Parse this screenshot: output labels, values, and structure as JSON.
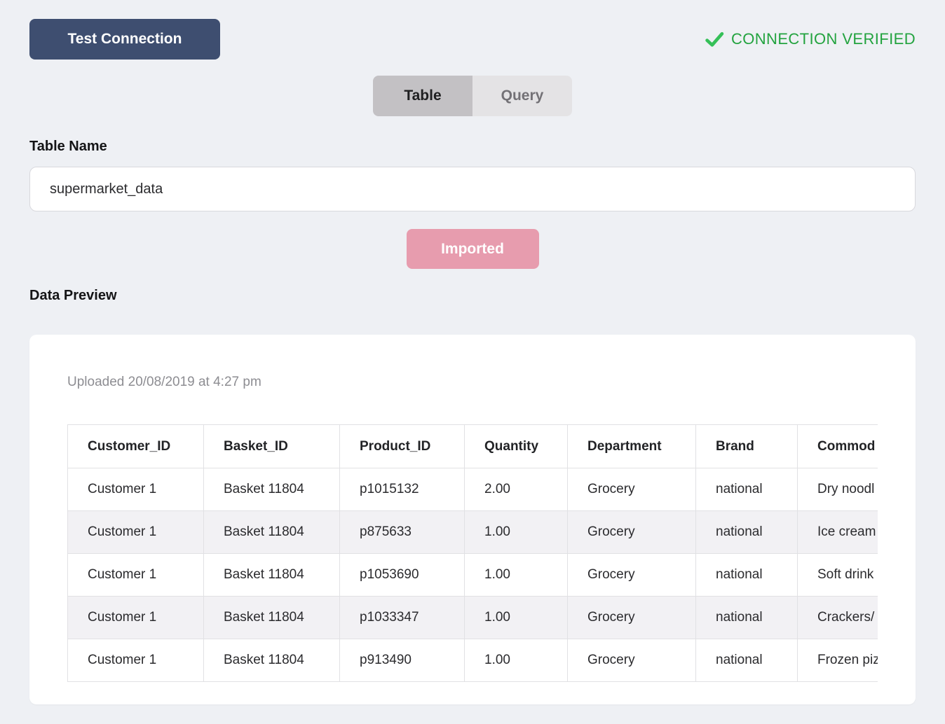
{
  "header": {
    "test_connection_label": "Test Connection",
    "status": {
      "label": "CONNECTION VERIFIED",
      "icon": "check-icon",
      "text_color": "#23a33f",
      "icon_color": "#35c058"
    }
  },
  "tabs": [
    {
      "label": "Table",
      "active": true
    },
    {
      "label": "Query",
      "active": false
    }
  ],
  "form": {
    "table_name_label": "Table Name",
    "table_name_value": "supermarket_data",
    "imported_button_label": "Imported",
    "imported_button_color": "#e79cae",
    "test_button_color": "#3e4e70"
  },
  "preview": {
    "heading": "Data Preview",
    "uploaded_text": "Uploaded 20/08/2019 at 4:27 pm",
    "table": {
      "columns": [
        "Customer_ID",
        "Basket_ID",
        "Product_ID",
        "Quantity",
        "Department",
        "Brand",
        "Commod"
      ],
      "rows": [
        [
          "Customer 1",
          "Basket 11804",
          "p1015132",
          "2.00",
          "Grocery",
          "national",
          "Dry noodl"
        ],
        [
          "Customer 1",
          "Basket 11804",
          "p875633",
          "1.00",
          "Grocery",
          "national",
          "Ice cream"
        ],
        [
          "Customer 1",
          "Basket 11804",
          "p1053690",
          "1.00",
          "Grocery",
          "national",
          "Soft drink"
        ],
        [
          "Customer 1",
          "Basket 11804",
          "p1033347",
          "1.00",
          "Grocery",
          "national",
          "Crackers/"
        ],
        [
          "Customer 1",
          "Basket 11804",
          "p913490",
          "1.00",
          "Grocery",
          "national",
          "Frozen piz"
        ]
      ]
    }
  }
}
